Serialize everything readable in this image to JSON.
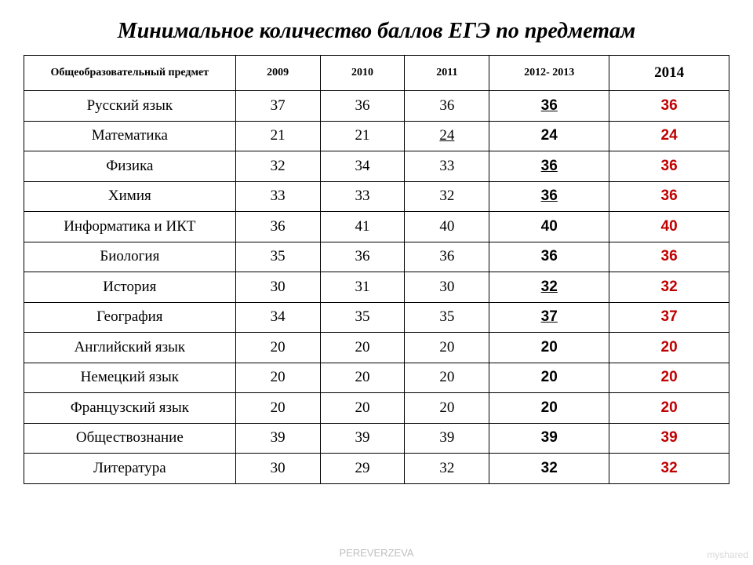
{
  "title": "Минимальное количество баллов ЕГЭ по предметам",
  "footer": "PEREVERZEVA",
  "watermark": "myshared",
  "table": {
    "col_widths_pct": [
      30,
      12,
      12,
      12,
      17,
      17
    ],
    "header_fontsize": 14,
    "header_last_fontsize": 19,
    "body_fontsize": 19,
    "col4_font": "Arial",
    "col5_font": "Arial",
    "col5_color": "#c00000",
    "border_color": "#000000",
    "columns": [
      "Общеобразовательный предмет",
      "2009",
      "2010",
      "2011",
      "2012- 2013",
      "2014"
    ],
    "rows": [
      {
        "subject": "Русский язык",
        "v": [
          "37",
          "36",
          "36",
          "36",
          "36"
        ],
        "u": [
          false,
          false,
          false,
          true,
          false
        ]
      },
      {
        "subject": "Математика",
        "v": [
          "21",
          "21",
          "24",
          "24",
          "24"
        ],
        "u": [
          false,
          false,
          true,
          false,
          false
        ]
      },
      {
        "subject": "Физика",
        "v": [
          "32",
          "34",
          "33",
          "36",
          "36"
        ],
        "u": [
          false,
          false,
          false,
          true,
          false
        ]
      },
      {
        "subject": "Химия",
        "v": [
          "33",
          "33",
          "32",
          "36",
          "36"
        ],
        "u": [
          false,
          false,
          false,
          true,
          false
        ]
      },
      {
        "subject": "Информатика и ИКТ",
        "v": [
          "36",
          "41",
          "40",
          "40",
          "40"
        ],
        "u": [
          false,
          false,
          false,
          false,
          false
        ]
      },
      {
        "subject": "Биология",
        "v": [
          "35",
          "36",
          "36",
          "36",
          "36"
        ],
        "u": [
          false,
          false,
          false,
          false,
          false
        ]
      },
      {
        "subject": "История",
        "v": [
          "30",
          "31",
          "30",
          "32",
          "32"
        ],
        "u": [
          false,
          false,
          false,
          true,
          false
        ]
      },
      {
        "subject": "География",
        "v": [
          "34",
          "35",
          "35",
          "37",
          "37"
        ],
        "u": [
          false,
          false,
          false,
          true,
          false
        ]
      },
      {
        "subject": "Английский язык",
        "v": [
          "20",
          "20",
          "20",
          "20",
          "20"
        ],
        "u": [
          false,
          false,
          false,
          false,
          false
        ]
      },
      {
        "subject": "Немецкий язык",
        "v": [
          "20",
          "20",
          "20",
          "20",
          "20"
        ],
        "u": [
          false,
          false,
          false,
          false,
          false
        ]
      },
      {
        "subject": "Французский язык",
        "v": [
          "20",
          "20",
          "20",
          "20",
          "20"
        ],
        "u": [
          false,
          false,
          false,
          false,
          false
        ]
      },
      {
        "subject": "Обществознание",
        "v": [
          "39",
          "39",
          "39",
          "39",
          "39"
        ],
        "u": [
          false,
          false,
          false,
          false,
          false
        ]
      },
      {
        "subject": "Литература",
        "v": [
          "30",
          "29",
          "32",
          "32",
          "32"
        ],
        "u": [
          false,
          false,
          false,
          false,
          false
        ]
      }
    ]
  }
}
